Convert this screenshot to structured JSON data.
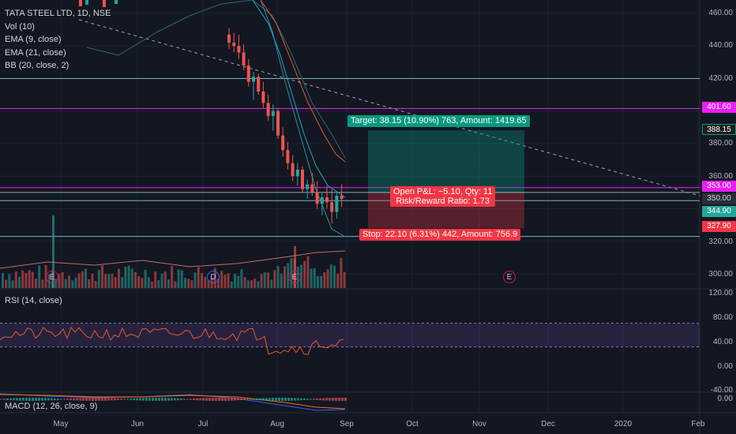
{
  "chart_data": {
    "type": "candlestick",
    "symbol": "TATA STEEL LTD, 1D, NSE",
    "indicators": [
      "Vol (10)",
      "EMA (9, close)",
      "EMA (21, close)",
      "BB (20, close, 2)"
    ],
    "x_axis_labels": [
      "May",
      "Jun",
      "Jul",
      "Aug",
      "Sep",
      "Oct",
      "Nov",
      "Dec",
      "2020",
      "Feb"
    ],
    "price_axis_labels": [
      "460.00",
      "440.00",
      "420.00",
      "380.00",
      "360.00",
      "320.00",
      "300.00"
    ],
    "price_tags": [
      {
        "value": "401.60",
        "color": "#e91ef5"
      },
      {
        "value": "388.15",
        "color": "#1e1e1e"
      },
      {
        "value": "353.00",
        "color": "#e91ef5"
      },
      {
        "value": "350.00",
        "color": "#2a2e39"
      },
      {
        "value": "344.90",
        "color": "#26a69a"
      },
      {
        "value": "327.90",
        "color": "#f23645"
      }
    ],
    "horizontal_lines": [
      {
        "value": 420,
        "color": "#7fb0c0"
      },
      {
        "value": 401.6,
        "color": "#e91ef5"
      },
      {
        "value": 353,
        "color": "#e91ef5"
      },
      {
        "value": 350,
        "color": "#7fb0c0"
      },
      {
        "value": 345,
        "color": "#7fb0c0"
      },
      {
        "value": 323,
        "color": "#7fb0c0"
      }
    ],
    "price_range": [
      293,
      468
    ],
    "candles": [
      {
        "o": 447,
        "h": 451,
        "l": 438,
        "c": 442
      },
      {
        "o": 442,
        "h": 448,
        "l": 436,
        "c": 440
      },
      {
        "o": 440,
        "h": 447,
        "l": 432,
        "c": 436
      },
      {
        "o": 436,
        "h": 441,
        "l": 425,
        "c": 428
      },
      {
        "o": 428,
        "h": 432,
        "l": 415,
        "c": 418
      },
      {
        "o": 418,
        "h": 424,
        "l": 407,
        "c": 421
      },
      {
        "o": 421,
        "h": 423,
        "l": 410,
        "c": 412
      },
      {
        "o": 412,
        "h": 418,
        "l": 402,
        "c": 405
      },
      {
        "o": 405,
        "h": 410,
        "l": 394,
        "c": 397
      },
      {
        "o": 397,
        "h": 404,
        "l": 388,
        "c": 400
      },
      {
        "o": 400,
        "h": 402,
        "l": 383,
        "c": 385
      },
      {
        "o": 385,
        "h": 390,
        "l": 372,
        "c": 376
      },
      {
        "o": 376,
        "h": 381,
        "l": 364,
        "c": 368
      },
      {
        "o": 368,
        "h": 373,
        "l": 357,
        "c": 360
      },
      {
        "o": 360,
        "h": 368,
        "l": 354,
        "c": 364
      },
      {
        "o": 364,
        "h": 366,
        "l": 350,
        "c": 352
      },
      {
        "o": 352,
        "h": 358,
        "l": 346,
        "c": 355
      },
      {
        "o": 355,
        "h": 362,
        "l": 348,
        "c": 350
      },
      {
        "o": 350,
        "h": 357,
        "l": 340,
        "c": 343
      },
      {
        "o": 343,
        "h": 350,
        "l": 336,
        "c": 347
      },
      {
        "o": 347,
        "h": 354,
        "l": 340,
        "c": 344
      },
      {
        "o": 344,
        "h": 352,
        "l": 331,
        "c": 338
      },
      {
        "o": 338,
        "h": 350,
        "l": 334,
        "c": 348
      },
      {
        "o": 348,
        "h": 355,
        "l": 341,
        "c": 346
      }
    ],
    "position": {
      "target_label": "Target: 38.15 (10.90%) 763, Amount: 1419.65",
      "pnl_label": "Open P&L: −5.10, Qty: 11",
      "rr_label": "Risk/Reward Ratio: 1.73",
      "stop_label": "Stop: 22.10 (6.31%) 442, Amount: 756.9",
      "entry": 350,
      "target": 388.15,
      "stop": 327.9
    },
    "events": [
      {
        "label": "E",
        "type": "earnings",
        "x_index": 0
      },
      {
        "label": "D",
        "type": "dividend",
        "x_index": 1
      },
      {
        "label": "E",
        "type": "earnings",
        "x_index": 2
      },
      {
        "label": "E",
        "type": "earnings",
        "x_index": 3
      }
    ],
    "rsi": {
      "label": "RSI (14, close)",
      "axis_labels": [
        "120.00",
        "80.00",
        "40.00",
        "0.00",
        "-40.00"
      ],
      "upper": 70,
      "lower": 30,
      "range": [
        -45,
        120
      ]
    },
    "macd": {
      "label": "MACD (12, 26, close, 9)",
      "axis_labels": [
        "0.00"
      ]
    }
  }
}
